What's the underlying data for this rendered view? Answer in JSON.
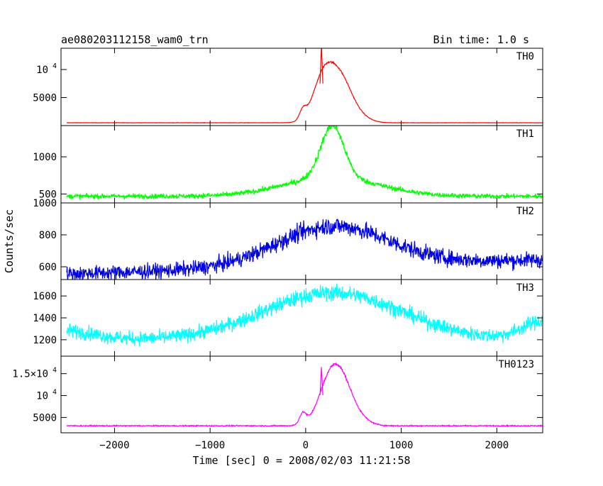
{
  "header": {
    "title": "ae080203112158_wam0_trn",
    "bin_time": "Bin time: 1.0 s"
  },
  "ylabel": "Counts/sec",
  "xlabel": "Time [sec] 0 = 2008/02/03 11:21:58",
  "x_axis": {
    "range": [
      -2560,
      2480
    ],
    "ticks": [
      -2000,
      -1000,
      0,
      1000,
      2000
    ],
    "tick_labels": [
      "−2000",
      "−1000",
      "0",
      "1000",
      "2000"
    ]
  },
  "chart_data": [
    {
      "type": "line",
      "name": "TH0",
      "color": "#ff0000",
      "ylim": [
        0,
        13800
      ],
      "yticks": [
        {
          "value": 5000,
          "label": "5000"
        },
        {
          "value": 10000,
          "label": "10",
          "exp": "4"
        }
      ],
      "model": {
        "baseline": 500,
        "noise": 30,
        "features": [
          {
            "x": -30,
            "amp": 1600,
            "w": 35
          },
          {
            "x": 200,
            "amp": 9000,
            "w": 115
          },
          {
            "x": 380,
            "amp": 5500,
            "w": 105
          },
          {
            "x": 520,
            "amp": 1500,
            "w": 120
          }
        ],
        "spikes": [
          {
            "x": 165,
            "amp": 14500
          }
        ]
      }
    },
    {
      "type": "line",
      "name": "TH1",
      "color": "#00ff00",
      "ylim": [
        380,
        1420
      ],
      "yticks": [
        {
          "value": 500,
          "label": "500"
        },
        {
          "value": 1000,
          "label": "1000"
        }
      ],
      "model": {
        "baseline": 470,
        "noise": 30,
        "features": [
          {
            "x": 280,
            "amp": 700,
            "w": 120
          },
          {
            "x": 270,
            "amp": 250,
            "w": 500
          }
        ]
      }
    },
    {
      "type": "line",
      "name": "TH2",
      "color": "#0000e6",
      "ylim": [
        520,
        1000
      ],
      "yticks": [
        {
          "value": 600,
          "label": "600"
        },
        {
          "value": 800,
          "label": "800"
        },
        {
          "value": 1000,
          "label": "1000"
        }
      ],
      "model": {
        "baseline": 600,
        "noise": 45,
        "slope": 18,
        "features": [
          {
            "x": 280,
            "amp": 250,
            "w": 580
          }
        ]
      }
    },
    {
      "type": "line",
      "name": "TH3",
      "color": "#00ffff",
      "ylim": [
        1050,
        1750
      ],
      "yticks": [
        {
          "value": 1200,
          "label": "1200"
        },
        {
          "value": 1400,
          "label": "1400"
        },
        {
          "value": 1600,
          "label": "1600"
        }
      ],
      "model": {
        "baseline": 1200,
        "noise": 60,
        "features": [
          {
            "x": -2500,
            "amp": 80,
            "w": 300
          },
          {
            "x": 280,
            "amp": 430,
            "w": 720
          },
          {
            "x": 2500,
            "amp": 170,
            "w": 230
          }
        ]
      }
    },
    {
      "type": "line",
      "name": "TH0123",
      "color": "#ff00ff",
      "ylim": [
        1500,
        19000
      ],
      "yticks": [
        {
          "value": 5000,
          "label": "5000"
        },
        {
          "value": 10000,
          "label": "10",
          "exp": "4"
        },
        {
          "value": 15000,
          "label": "1.5×10",
          "exp": "4"
        }
      ],
      "model": {
        "baseline": 3100,
        "noise": 120,
        "features": [
          {
            "x": -30,
            "amp": 2500,
            "w": 35
          },
          {
            "x": 250,
            "amp": 9500,
            "w": 120
          },
          {
            "x": 380,
            "amp": 6500,
            "w": 110
          },
          {
            "x": 520,
            "amp": 2000,
            "w": 120
          }
        ],
        "spikes": [
          {
            "x": 165,
            "amp": 16500
          }
        ]
      }
    }
  ]
}
